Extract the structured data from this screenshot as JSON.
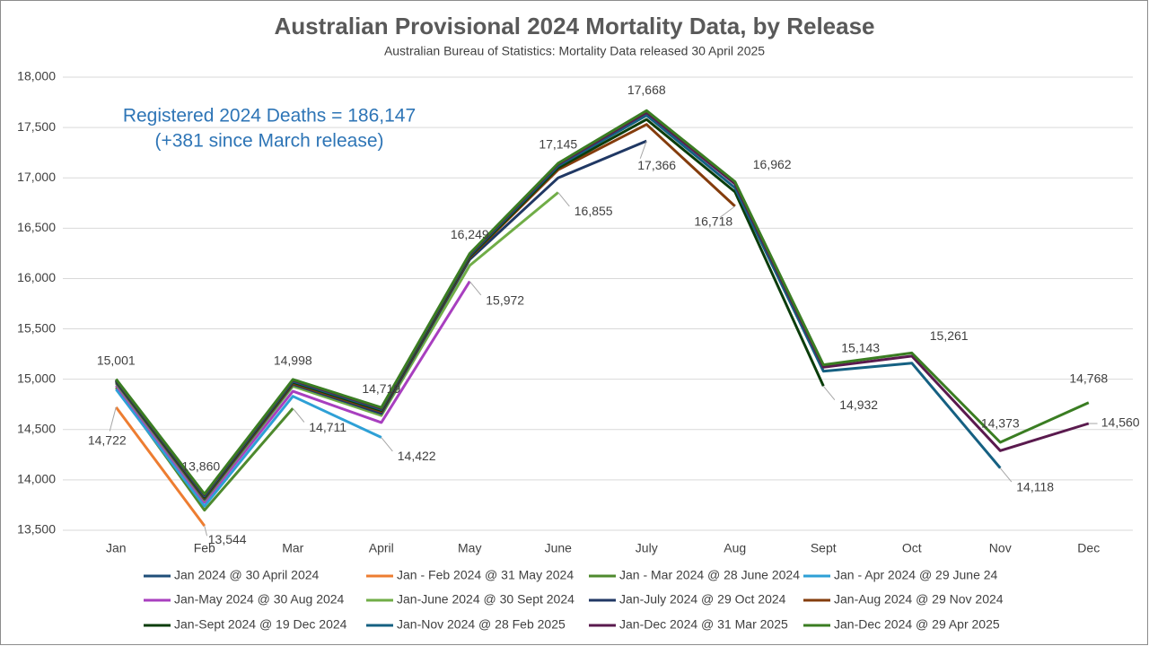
{
  "chart_data": {
    "type": "line",
    "title": "Australian Provisional 2024 Mortality Data, by Release",
    "subtitle": "Australian Bureau of Statistics: Mortality Data released 30 April 2025",
    "annotations": [
      "Registered 2024 Deaths = 186,147",
      "(+381 since March release)"
    ],
    "categories": [
      "Jan",
      "Feb",
      "Mar",
      "April",
      "May",
      "June",
      "July",
      "Aug",
      "Sept",
      "Oct",
      "Nov",
      "Dec"
    ],
    "ylim": [
      13500,
      18000
    ],
    "yticks": [
      {
        "value": 13500,
        "label": "13,500"
      },
      {
        "value": 14000,
        "label": "14,000"
      },
      {
        "value": 14500,
        "label": "14,500"
      },
      {
        "value": 15000,
        "label": "15,000"
      },
      {
        "value": 15500,
        "label": "15,500"
      },
      {
        "value": 16000,
        "label": "16,000"
      },
      {
        "value": 16500,
        "label": "16,500"
      },
      {
        "value": 17000,
        "label": "17,000"
      },
      {
        "value": 17500,
        "label": "17,500"
      },
      {
        "value": 18000,
        "label": "18,000"
      }
    ],
    "grid": true,
    "legend": "bottom",
    "series": [
      {
        "name": "Jan 2024 @ 30 April 2024",
        "color": "#1f4e79",
        "values": [
          14950,
          null,
          null,
          null,
          null,
          null,
          null,
          null,
          null,
          null,
          null,
          null
        ]
      },
      {
        "name": "Jan - Feb 2024 @ 31 May 2024",
        "color": "#ed7d31",
        "values": [
          14722,
          13544,
          null,
          null,
          null,
          null,
          null,
          null,
          null,
          null,
          null,
          null
        ],
        "value_labels": [
          "14,722",
          "13,544",
          null,
          null,
          null,
          null,
          null,
          null,
          null,
          null,
          null,
          null
        ]
      },
      {
        "name": "Jan - Mar 2024 @ 28 June 2024",
        "color": "#4e8a2e",
        "values": [
          14920,
          13700,
          14711,
          null,
          null,
          null,
          null,
          null,
          null,
          null,
          null,
          null
        ],
        "value_labels": [
          null,
          null,
          "14,711",
          null,
          null,
          null,
          null,
          null,
          null,
          null,
          null,
          null
        ]
      },
      {
        "name": "Jan - Apr 2024 @ 29 June 24",
        "color": "#2ea0d6",
        "values": [
          14900,
          13740,
          14830,
          14422,
          null,
          null,
          null,
          null,
          null,
          null,
          null,
          null
        ],
        "value_labels": [
          null,
          null,
          null,
          "14,422",
          null,
          null,
          null,
          null,
          null,
          null,
          null,
          null
        ]
      },
      {
        "name": "Jan-May 2024 @ 30 Aug 2024",
        "color": "#a83fbf",
        "values": [
          14940,
          13780,
          14880,
          14570,
          15972,
          null,
          null,
          null,
          null,
          null,
          null,
          null
        ],
        "value_labels": [
          null,
          null,
          null,
          null,
          "15,972",
          null,
          null,
          null,
          null,
          null,
          null,
          null
        ]
      },
      {
        "name": "Jan-June 2024 @ 30 Sept 2024",
        "color": "#70ad47",
        "values": [
          14960,
          13800,
          14930,
          14640,
          16130,
          16855,
          null,
          null,
          null,
          null,
          null,
          null
        ],
        "value_labels": [
          null,
          null,
          null,
          null,
          null,
          "16,855",
          null,
          null,
          null,
          null,
          null,
          null
        ]
      },
      {
        "name": "Jan-July 2024 @ 29 Oct 2024",
        "color": "#203864",
        "values": [
          14970,
          13810,
          14950,
          14660,
          16190,
          17000,
          17366,
          null,
          null,
          null,
          null,
          null
        ],
        "value_labels": [
          null,
          null,
          null,
          null,
          null,
          null,
          "17,366",
          null,
          null,
          null,
          null,
          null
        ]
      },
      {
        "name": "Jan-Aug 2024 @ 29 Nov 2024",
        "color": "#843c0c",
        "values": [
          14980,
          13820,
          14960,
          14680,
          16210,
          17080,
          17530,
          16718,
          null,
          null,
          null,
          null
        ],
        "value_labels": [
          null,
          null,
          null,
          null,
          null,
          null,
          null,
          "16,718",
          null,
          null,
          null,
          null
        ]
      },
      {
        "name": "Jan-Sept 2024 @ 19 Dec 2024",
        "color": "#0b3d0b",
        "values": [
          14985,
          13830,
          14970,
          14690,
          16220,
          17100,
          17580,
          16860,
          14932,
          null,
          null,
          null
        ],
        "value_labels": [
          null,
          null,
          null,
          null,
          null,
          null,
          null,
          null,
          "14,932",
          null,
          null,
          null
        ]
      },
      {
        "name": "Jan-Nov 2024 @ 28 Feb 2025",
        "color": "#156082",
        "values": [
          14990,
          13840,
          14980,
          14700,
          16230,
          17120,
          17620,
          16900,
          15080,
          15160,
          14118,
          null
        ],
        "value_labels": [
          null,
          null,
          null,
          null,
          null,
          null,
          null,
          null,
          null,
          null,
          "14,118",
          null
        ]
      },
      {
        "name": "Jan-Dec 2024 @ 31 Mar 2025",
        "color": "#5a1a4e",
        "values": [
          14995,
          13850,
          14990,
          14710,
          16240,
          17135,
          17650,
          16940,
          15120,
          15230,
          14290,
          14560
        ],
        "value_labels": [
          null,
          null,
          null,
          null,
          null,
          null,
          null,
          null,
          null,
          null,
          null,
          "14,560"
        ]
      },
      {
        "name": "Jan-Dec 2024 @ 29 Apr 2025",
        "color": "#3a7d22",
        "values": [
          15001,
          13860,
          14998,
          14719,
          16249,
          17145,
          17668,
          16962,
          15143,
          15261,
          14373,
          14768
        ],
        "value_labels": [
          "15,001",
          "13,860",
          "14,998",
          "14,719",
          "16,249",
          "17,145",
          "17,668",
          "16,962",
          "15,143",
          "15,261",
          "14,373",
          "14,768"
        ]
      }
    ]
  }
}
